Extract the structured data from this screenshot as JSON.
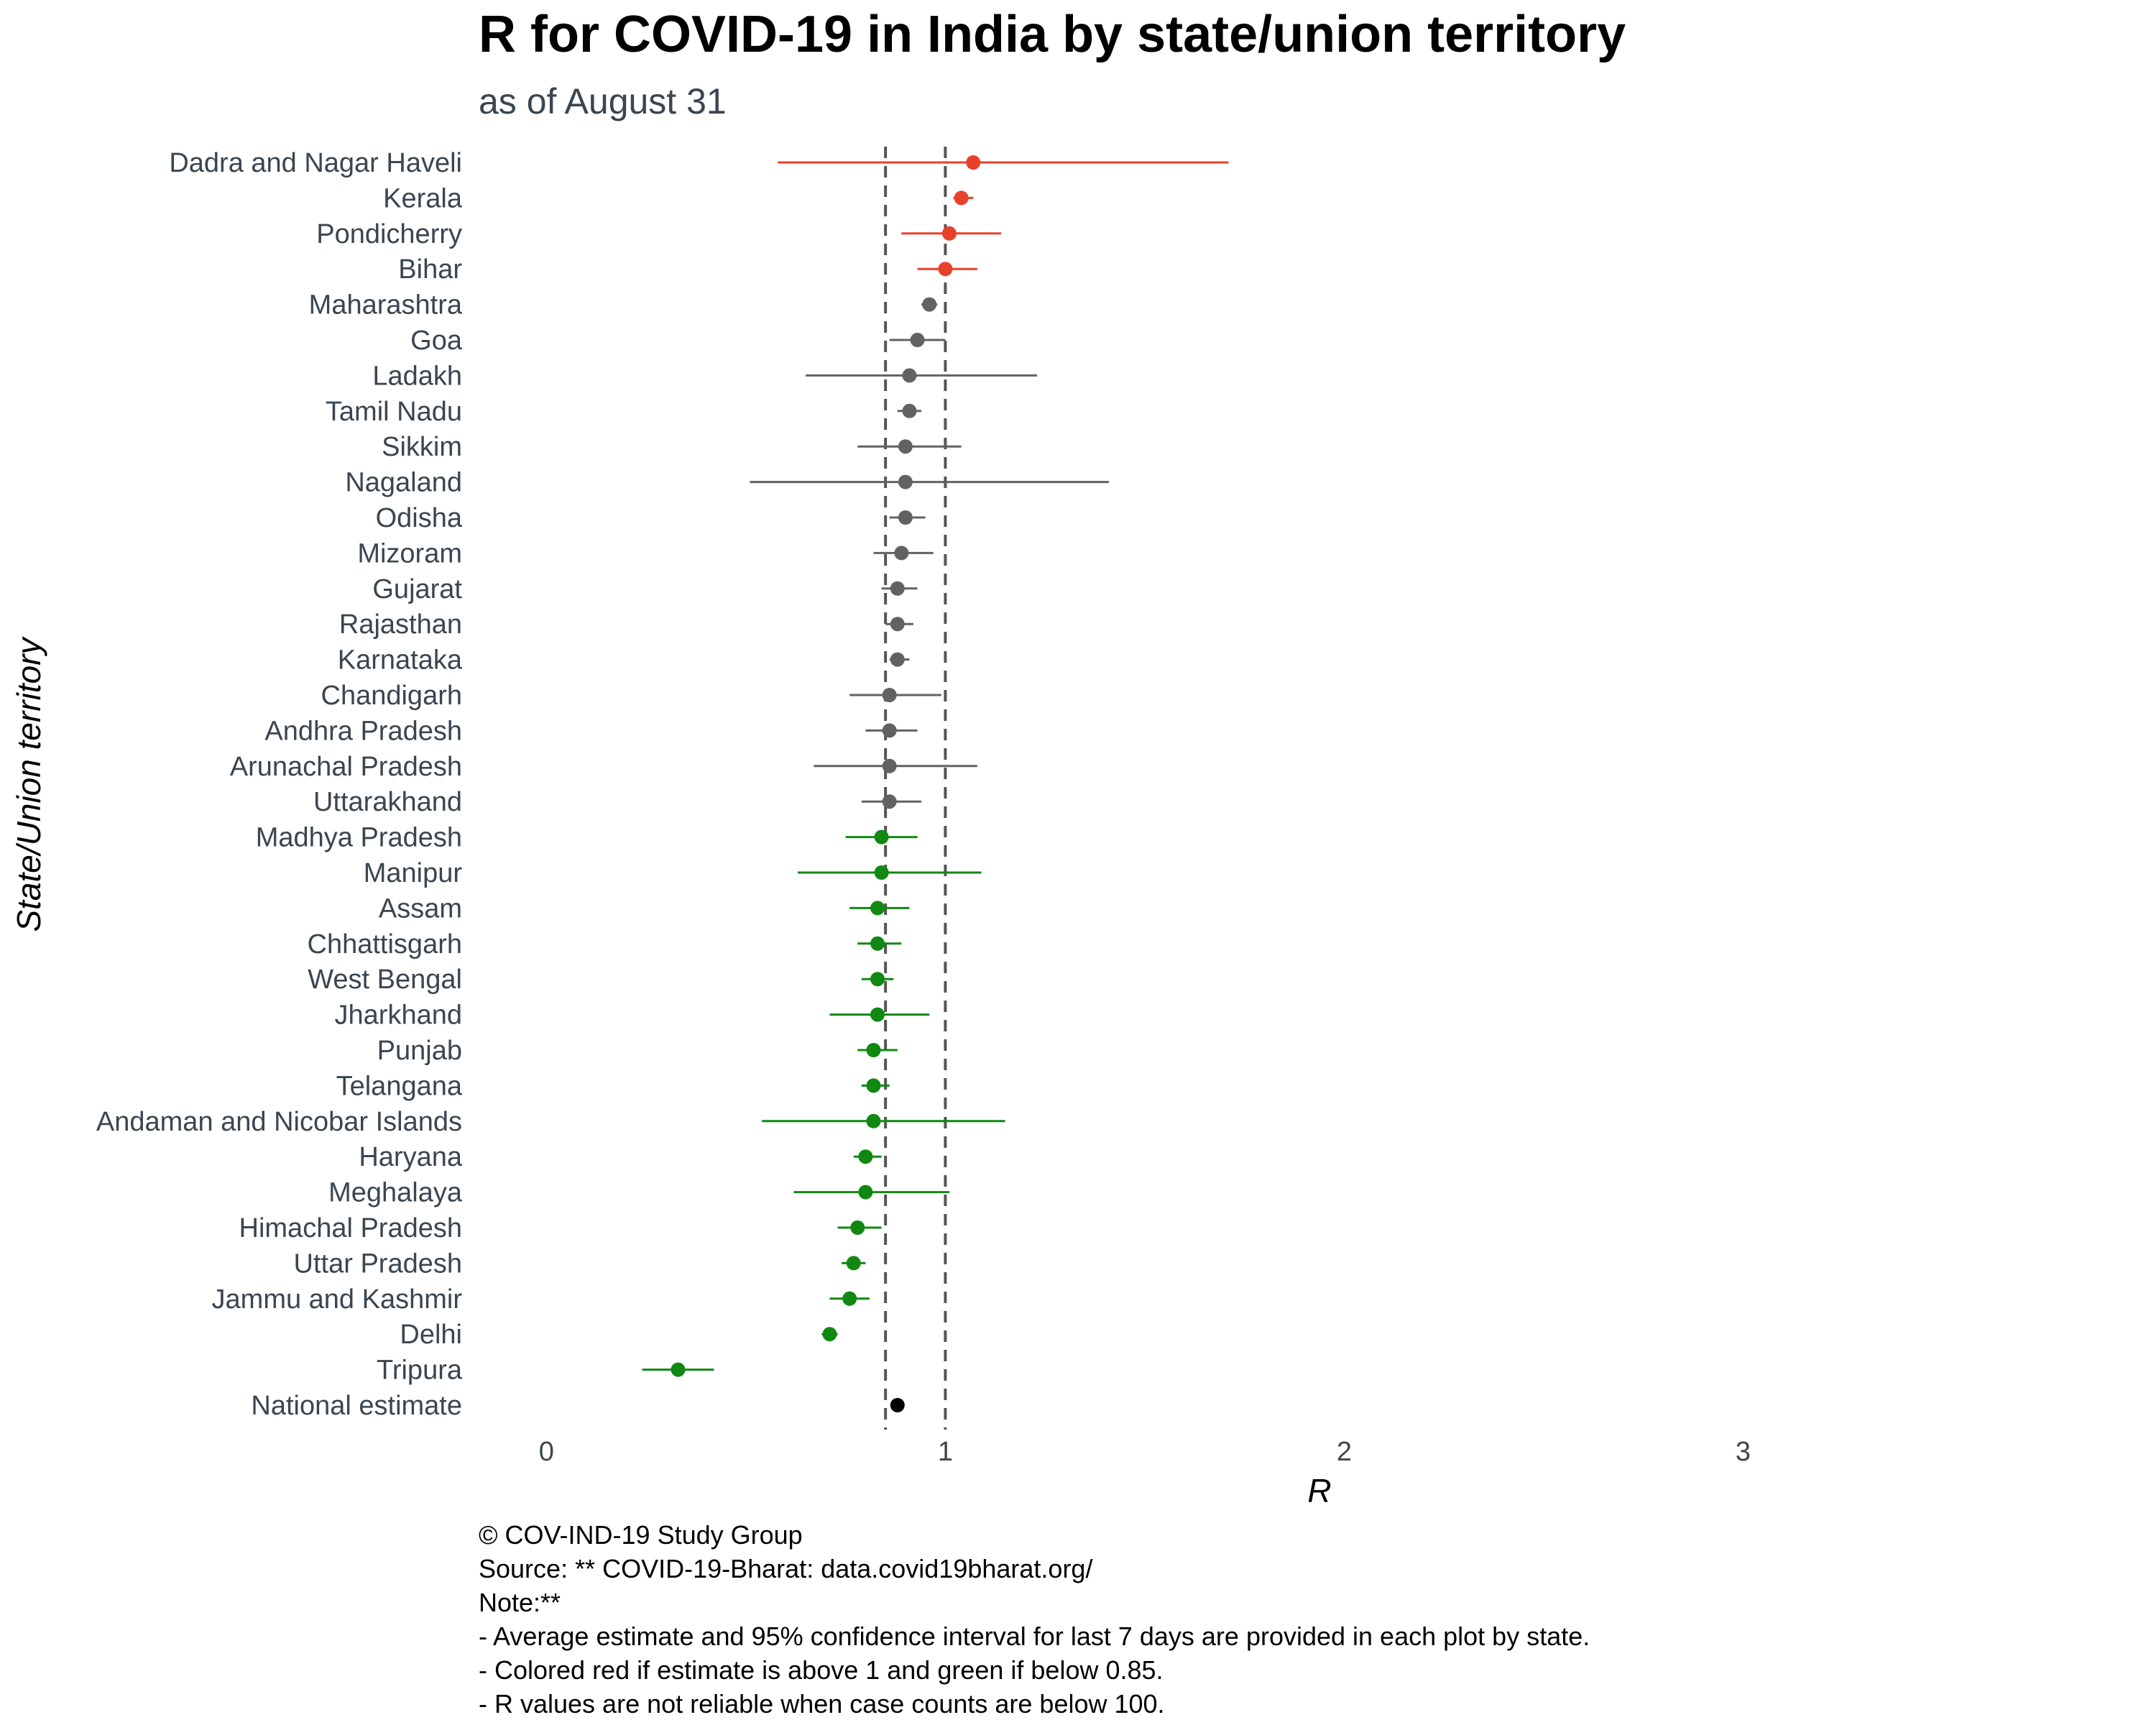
{
  "chart_data": {
    "type": "scatter",
    "title": "R for COVID-19 in India by state/union territory",
    "subtitle": "as of August 31",
    "xlabel": "R",
    "ylabel": "State/Union territory",
    "xlim": [
      -0.17,
      3.3
    ],
    "xticks": [
      0,
      1,
      2,
      3
    ],
    "reference_lines": [
      0.85,
      1
    ],
    "grid": false,
    "colors": {
      "above_1": "#e8402a",
      "between": "#626262",
      "below_085": "#118811",
      "national": "#000000"
    },
    "points": [
      {
        "name": "Dadra and Nagar Haveli",
        "r": 1.07,
        "lower": 0.58,
        "upper": 1.71,
        "group": "above_1"
      },
      {
        "name": "Kerala",
        "r": 1.04,
        "lower": 1.02,
        "upper": 1.07,
        "group": "above_1"
      },
      {
        "name": "Pondicherry",
        "r": 1.01,
        "lower": 0.89,
        "upper": 1.14,
        "group": "above_1"
      },
      {
        "name": "Bihar",
        "r": 1.0,
        "lower": 0.93,
        "upper": 1.08,
        "group": "above_1"
      },
      {
        "name": "Maharashtra",
        "r": 0.96,
        "lower": 0.94,
        "upper": 0.98,
        "group": "between"
      },
      {
        "name": "Goa",
        "r": 0.93,
        "lower": 0.86,
        "upper": 1.0,
        "group": "between"
      },
      {
        "name": "Ladakh",
        "r": 0.91,
        "lower": 0.65,
        "upper": 1.23,
        "group": "between"
      },
      {
        "name": "Tamil Nadu",
        "r": 0.91,
        "lower": 0.88,
        "upper": 0.94,
        "group": "between"
      },
      {
        "name": "Sikkim",
        "r": 0.9,
        "lower": 0.78,
        "upper": 1.04,
        "group": "between"
      },
      {
        "name": "Nagaland",
        "r": 0.9,
        "lower": 0.51,
        "upper": 1.41,
        "group": "between"
      },
      {
        "name": "Odisha",
        "r": 0.9,
        "lower": 0.86,
        "upper": 0.95,
        "group": "between"
      },
      {
        "name": "Mizoram",
        "r": 0.89,
        "lower": 0.82,
        "upper": 0.97,
        "group": "between"
      },
      {
        "name": "Gujarat",
        "r": 0.88,
        "lower": 0.84,
        "upper": 0.93,
        "group": "between"
      },
      {
        "name": "Rajasthan",
        "r": 0.88,
        "lower": 0.85,
        "upper": 0.92,
        "group": "between"
      },
      {
        "name": "Karnataka",
        "r": 0.88,
        "lower": 0.86,
        "upper": 0.91,
        "group": "between"
      },
      {
        "name": "Chandigarh",
        "r": 0.86,
        "lower": 0.76,
        "upper": 0.99,
        "group": "between"
      },
      {
        "name": "Andhra Pradesh",
        "r": 0.86,
        "lower": 0.8,
        "upper": 0.93,
        "group": "between"
      },
      {
        "name": "Arunachal Pradesh",
        "r": 0.86,
        "lower": 0.67,
        "upper": 1.08,
        "group": "between"
      },
      {
        "name": "Uttarakhand",
        "r": 0.86,
        "lower": 0.79,
        "upper": 0.94,
        "group": "between"
      },
      {
        "name": "Madhya Pradesh",
        "r": 0.84,
        "lower": 0.75,
        "upper": 0.93,
        "group": "below_085"
      },
      {
        "name": "Manipur",
        "r": 0.84,
        "lower": 0.63,
        "upper": 1.09,
        "group": "below_085"
      },
      {
        "name": "Assam",
        "r": 0.83,
        "lower": 0.76,
        "upper": 0.91,
        "group": "below_085"
      },
      {
        "name": "Chhattisgarh",
        "r": 0.83,
        "lower": 0.78,
        "upper": 0.89,
        "group": "below_085"
      },
      {
        "name": "West Bengal",
        "r": 0.83,
        "lower": 0.79,
        "upper": 0.87,
        "group": "below_085"
      },
      {
        "name": "Jharkhand",
        "r": 0.83,
        "lower": 0.71,
        "upper": 0.96,
        "group": "below_085"
      },
      {
        "name": "Punjab",
        "r": 0.82,
        "lower": 0.78,
        "upper": 0.88,
        "group": "below_085"
      },
      {
        "name": "Telangana",
        "r": 0.82,
        "lower": 0.79,
        "upper": 0.86,
        "group": "below_085"
      },
      {
        "name": "Andaman and Nicobar Islands",
        "r": 0.82,
        "lower": 0.54,
        "upper": 1.15,
        "group": "below_085"
      },
      {
        "name": "Haryana",
        "r": 0.8,
        "lower": 0.77,
        "upper": 0.84,
        "group": "below_085"
      },
      {
        "name": "Meghalaya",
        "r": 0.8,
        "lower": 0.62,
        "upper": 1.01,
        "group": "below_085"
      },
      {
        "name": "Himachal Pradesh",
        "r": 0.78,
        "lower": 0.73,
        "upper": 0.84,
        "group": "below_085"
      },
      {
        "name": "Uttar Pradesh",
        "r": 0.77,
        "lower": 0.74,
        "upper": 0.8,
        "group": "below_085"
      },
      {
        "name": "Jammu and Kashmir",
        "r": 0.76,
        "lower": 0.71,
        "upper": 0.81,
        "group": "below_085"
      },
      {
        "name": "Delhi",
        "r": 0.71,
        "lower": 0.69,
        "upper": 0.73,
        "group": "below_085"
      },
      {
        "name": "Tripura",
        "r": 0.33,
        "lower": 0.24,
        "upper": 0.42,
        "group": "below_085"
      },
      {
        "name": "National estimate",
        "r": 0.88,
        "lower": 0.87,
        "upper": 0.89,
        "group": "national"
      }
    ],
    "caption": [
      "© COV-IND-19 Study Group",
      "Source: ** COVID-19-Bharat: data.covid19bharat.org/",
      "Note:**",
      "- Average estimate and 95% confidence interval for last 7 days are provided in each plot by state.",
      "- Colored red if estimate is above 1 and green if below 0.85.",
      "- R values are not reliable when case counts are below 100."
    ]
  }
}
